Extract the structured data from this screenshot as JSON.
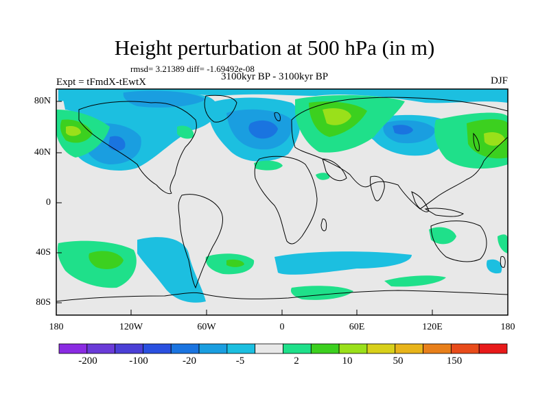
{
  "title": "Height perturbation at 500 hPa (in m)",
  "stats": "rmsd= 3.21389 diff= -1.69492e-08",
  "period": "3100kyr BP - 3100kyr BP",
  "experiment": "Expt = tFmdX-tEwtX",
  "season": "DJF",
  "lat_labels": [
    "80N",
    "40N",
    "0",
    "40S",
    "80S"
  ],
  "lon_labels": [
    "180",
    "120W",
    "60W",
    "0",
    "60E",
    "120E",
    "180"
  ],
  "colorbar": {
    "labels": [
      "-200",
      "-100",
      "-20",
      "-5",
      "2",
      "10",
      "50",
      "150"
    ],
    "colors": [
      "#8a2be2",
      "#6a3bd8",
      "#4b3fd6",
      "#2a50e0",
      "#1a74e0",
      "#1a9ee0",
      "#1cbfe0",
      "#e8e8e8",
      "#1fe08a",
      "#3cd01f",
      "#9ae01a",
      "#d8d01a",
      "#e8b41a",
      "#e87f1a",
      "#e84b1a",
      "#e81a1a"
    ]
  },
  "field_colors": {
    "neutral": "#e8e8e8",
    "neg_light": "#1cbfe0",
    "neg_mid": "#1a9ee0",
    "neg_strong": "#1a74e0",
    "pos_light": "#1fe08a",
    "pos_mid": "#3cd01f",
    "pos_strong": "#9ae01a"
  }
}
